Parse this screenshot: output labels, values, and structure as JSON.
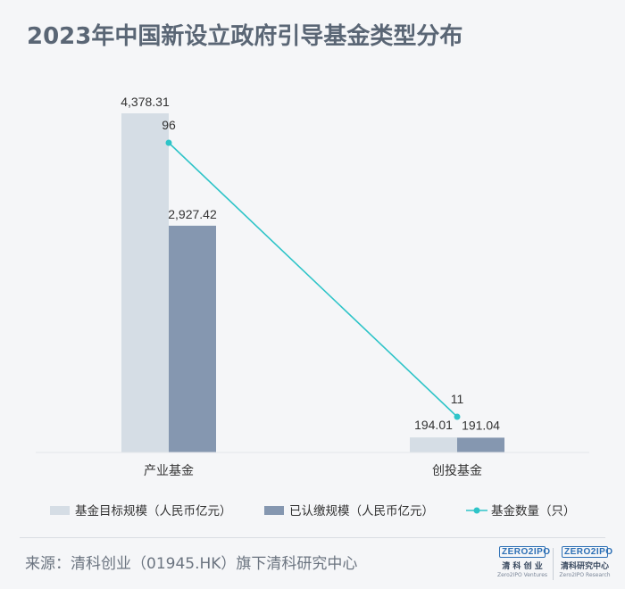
{
  "title": "2023年中国新设立政府引导基金类型分布",
  "source": "来源：清科创业（01945.HK）旗下清科研究中心",
  "logos": [
    {
      "mark": "ZERO2IPO",
      "cn": "清 科 创 业",
      "en": "Zero2IPO Ventures"
    },
    {
      "mark": "ZERO2IPO",
      "cn": "清科研究中心",
      "en": "Zero2IPO Research"
    }
  ],
  "colors": {
    "target": "#d5dde5",
    "subscribed": "#8597b0",
    "count": "#2ec4c8"
  },
  "chart_data": {
    "type": "bar",
    "categories": [
      "产业基金",
      "创投基金"
    ],
    "series": [
      {
        "name": "基金目标规模（人民币亿元）",
        "type": "bar",
        "values": [
          4378.31,
          194.01
        ],
        "labels": [
          "4,378.31",
          "194.01"
        ]
      },
      {
        "name": "已认缴规模（人民币亿元）",
        "type": "bar",
        "values": [
          2927.42,
          191.04
        ],
        "labels": [
          "2,927.42",
          "191.04"
        ]
      },
      {
        "name": "基金数量（只）",
        "type": "line",
        "values": [
          96,
          11
        ],
        "labels": [
          "96",
          "11"
        ]
      }
    ],
    "ylim": [
      0,
      4500
    ],
    "y2lim": [
      0,
      110
    ],
    "legend_position": "bottom",
    "grid": false
  }
}
